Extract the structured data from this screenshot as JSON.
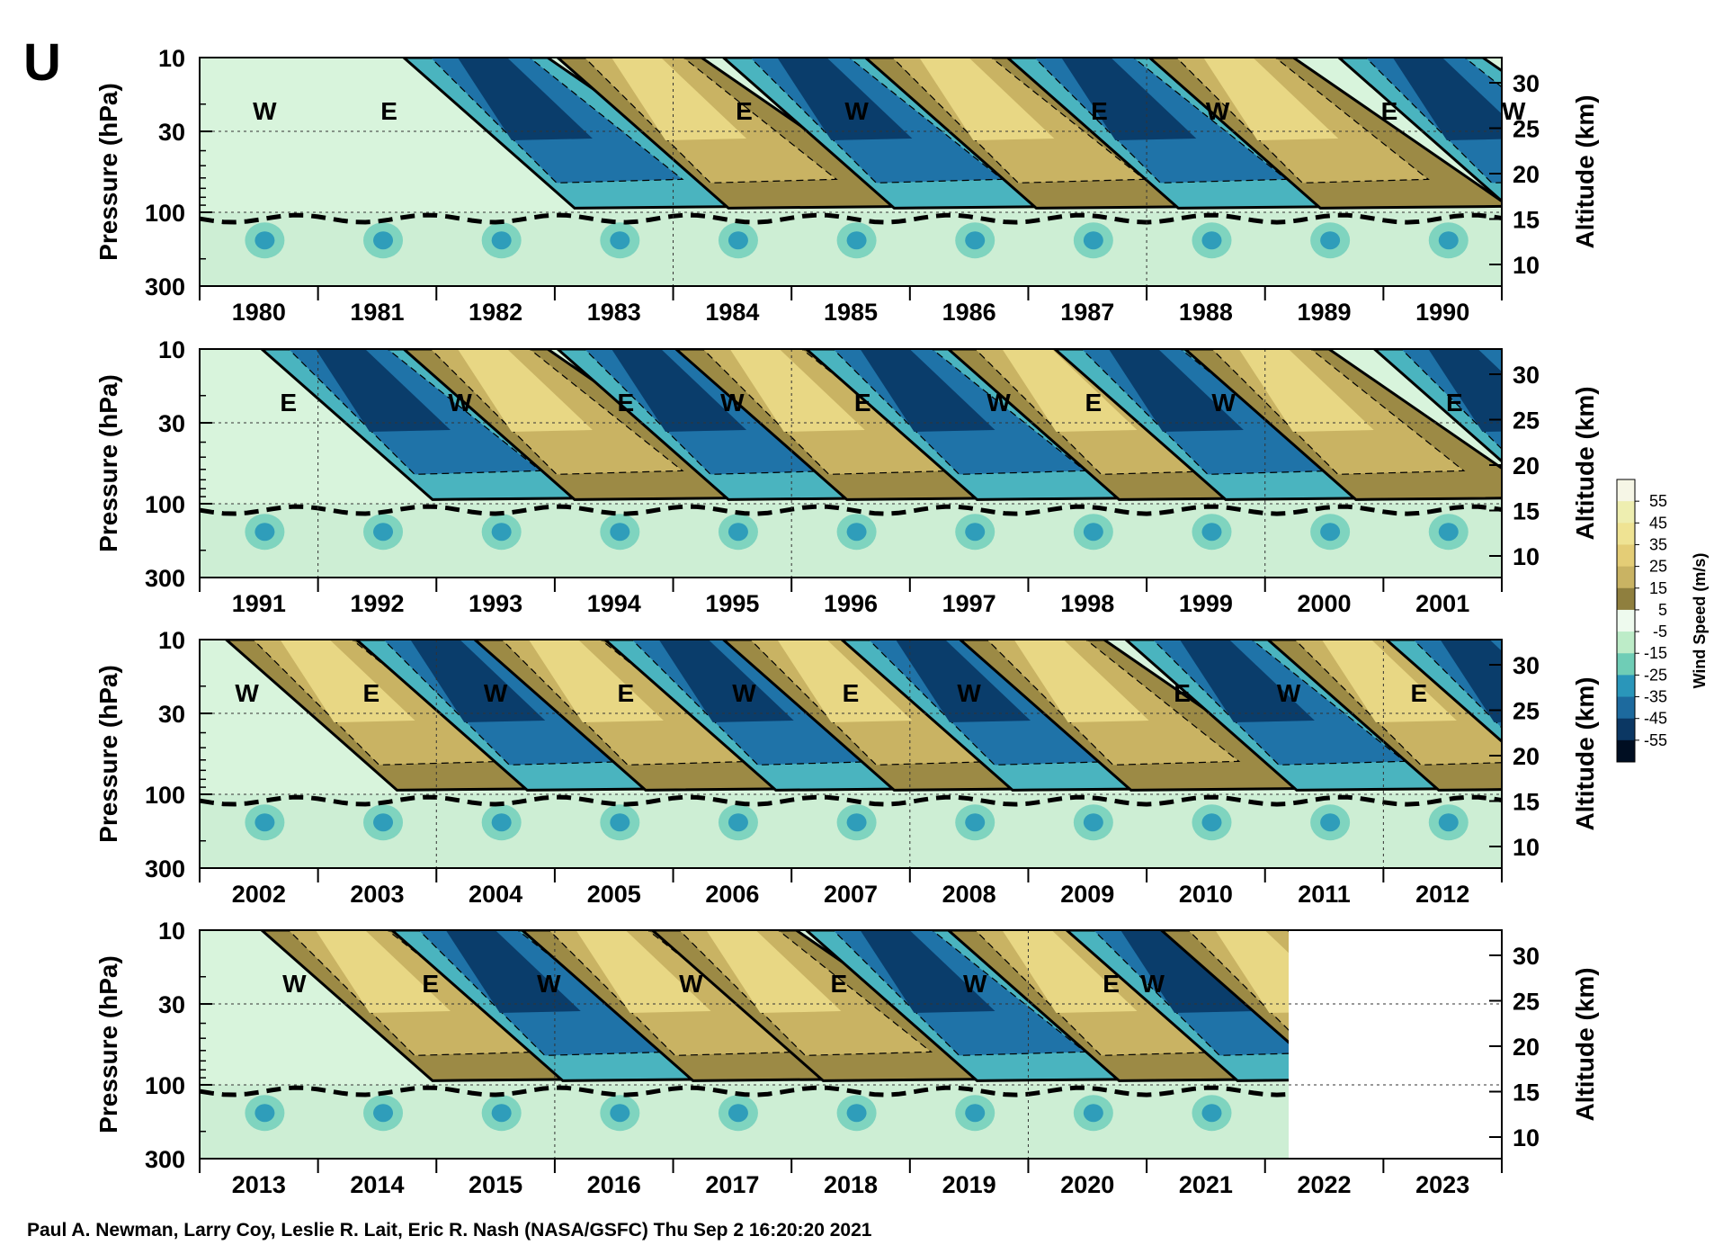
{
  "panel_letter": "U",
  "credit": "Paul A. Newman, Larry Coy, Leslie R. Lait, Eric R. Nash (NASA/GSFC) Thu Sep  2 16:20:20 2021",
  "colors": {
    "easterly_strong": "#0a3d6b",
    "easterly_mid": "#1f73a8",
    "easterly_weak": "#4ab4bf",
    "near_zero": "#b8ecca",
    "westerly_weak": "#9c8a45",
    "westerly_mid": "#c9b363",
    "westerly_strong": "#e8d784"
  },
  "colorbar": {
    "title": "Wind Speed (m/s)",
    "levels": [
      "55",
      "45",
      "35",
      "25",
      "15",
      "5",
      "-5",
      "-15",
      "-25",
      "-35",
      "-45",
      "-55"
    ],
    "colors": [
      "#f6f6e6",
      "#eeeeb0",
      "#efe393",
      "#e4cd76",
      "#c9b363",
      "#8f7f3e",
      "#eefaee",
      "#bdecc8",
      "#6fcdb6",
      "#2a96ba",
      "#1d6a9e",
      "#0b3763",
      "#000e22"
    ]
  },
  "chart_data": [
    {
      "type": "heatmap",
      "xlabels": [
        "1980",
        "1981",
        "1982",
        "1983",
        "1984",
        "1985",
        "1986",
        "1987",
        "1988",
        "1989",
        "1990"
      ],
      "xrange": [
        1979.5,
        1990.5
      ],
      "ylabel": "Pressure (hPa)",
      "yticks": [
        "10",
        "30",
        "100",
        "300"
      ],
      "y2label": "Altitude (km)",
      "y2ticks": [
        "30",
        "25",
        "20",
        "15",
        "10"
      ],
      "phase_labels": [
        {
          "text": "W",
          "year": 1980.05
        },
        {
          "text": "E",
          "year": 1981.1
        },
        {
          "text": "E",
          "year": 1984.1
        },
        {
          "text": "W",
          "year": 1985.05
        },
        {
          "text": "E",
          "year": 1987.1
        },
        {
          "text": "W",
          "year": 1988.1
        },
        {
          "text": "E",
          "year": 1989.55
        },
        {
          "text": "W",
          "year": 1990.6
        }
      ],
      "phases": [
        {
          "type": "E",
          "year": 1981.3
        },
        {
          "type": "W",
          "year": 1982.6
        },
        {
          "type": "E",
          "year": 1984.0
        },
        {
          "type": "W",
          "year": 1985.2
        },
        {
          "type": "E",
          "year": 1986.4
        },
        {
          "type": "W",
          "year": 1987.6
        },
        {
          "type": "E",
          "year": 1989.2
        },
        {
          "type": "W",
          "year": 1990.7
        }
      ]
    },
    {
      "type": "heatmap",
      "xlabels": [
        "1991",
        "1992",
        "1993",
        "1994",
        "1995",
        "1996",
        "1997",
        "1998",
        "1999",
        "2000",
        "2001"
      ],
      "xrange": [
        1990.5,
        2001.5
      ],
      "ylabel": "Pressure (hPa)",
      "yticks": [
        "10",
        "30",
        "100",
        "300"
      ],
      "y2label": "Altitude (km)",
      "y2ticks": [
        "30",
        "25",
        "20",
        "15",
        "10"
      ],
      "phase_labels": [
        {
          "text": "E",
          "year": 1991.25
        },
        {
          "text": "W",
          "year": 1992.7
        },
        {
          "text": "E",
          "year": 1994.1
        },
        {
          "text": "W",
          "year": 1995.0
        },
        {
          "text": "E",
          "year": 1996.1
        },
        {
          "text": "W",
          "year": 1997.25
        },
        {
          "text": "E",
          "year": 1998.05
        },
        {
          "text": "W",
          "year": 1999.15
        },
        {
          "text": "E",
          "year": 2001.1
        }
      ],
      "phases": [
        {
          "type": "E",
          "year": 1991.1
        },
        {
          "type": "W",
          "year": 1992.3
        },
        {
          "type": "E",
          "year": 1993.6
        },
        {
          "type": "W",
          "year": 1994.6
        },
        {
          "type": "E",
          "year": 1995.7
        },
        {
          "type": "W",
          "year": 1996.9
        },
        {
          "type": "E",
          "year": 1997.8
        },
        {
          "type": "W",
          "year": 1998.9
        },
        {
          "type": "E",
          "year": 2000.5
        }
      ]
    },
    {
      "type": "heatmap",
      "xlabels": [
        "2002",
        "2003",
        "2004",
        "2005",
        "2006",
        "2007",
        "2008",
        "2009",
        "2010",
        "2011",
        "2012"
      ],
      "xrange": [
        2001.5,
        2012.5
      ],
      "ylabel": "Pressure (hPa)",
      "yticks": [
        "10",
        "30",
        "100",
        "300"
      ],
      "y2label": "Altitude (km)",
      "y2ticks": [
        "30",
        "25",
        "20",
        "15",
        "10"
      ],
      "phase_labels": [
        {
          "text": "W",
          "year": 2001.9
        },
        {
          "text": "E",
          "year": 2002.95
        },
        {
          "text": "W",
          "year": 2004.0
        },
        {
          "text": "E",
          "year": 2005.1
        },
        {
          "text": "W",
          "year": 2006.1
        },
        {
          "text": "E",
          "year": 2007.0
        },
        {
          "text": "W",
          "year": 2008.0
        },
        {
          "text": "E",
          "year": 2009.8
        },
        {
          "text": "W",
          "year": 2010.7
        },
        {
          "text": "E",
          "year": 2011.8
        }
      ],
      "phases": [
        {
          "type": "W",
          "year": 2001.8
        },
        {
          "type": "E",
          "year": 2002.9
        },
        {
          "type": "W",
          "year": 2003.9
        },
        {
          "type": "E",
          "year": 2005.0
        },
        {
          "type": "W",
          "year": 2006.0
        },
        {
          "type": "E",
          "year": 2007.0
        },
        {
          "type": "W",
          "year": 2008.0
        },
        {
          "type": "E",
          "year": 2009.4
        },
        {
          "type": "W",
          "year": 2010.6
        },
        {
          "type": "E",
          "year": 2011.6
        }
      ]
    },
    {
      "type": "heatmap",
      "xlabels": [
        "2013",
        "2014",
        "2015",
        "2016",
        "2017",
        "2018",
        "2019",
        "2020",
        "2021",
        "2022",
        "2023"
      ],
      "xrange": [
        2012.5,
        2023.5
      ],
      "ylabel": "Pressure (hPa)",
      "yticks": [
        "10",
        "30",
        "100",
        "300"
      ],
      "y2label": "Altitude (km)",
      "y2ticks": [
        "30",
        "25",
        "20",
        "15",
        "10"
      ],
      "data_end_year": 2021.7,
      "phase_labels": [
        {
          "text": "W",
          "year": 2013.3
        },
        {
          "text": "E",
          "year": 2014.45
        },
        {
          "text": "W",
          "year": 2015.45
        },
        {
          "text": "W",
          "year": 2016.65
        },
        {
          "text": "E",
          "year": 2017.9
        },
        {
          "text": "W",
          "year": 2019.05
        },
        {
          "text": "E",
          "year": 2020.2
        },
        {
          "text": "W",
          "year": 2020.55
        }
      ],
      "phases": [
        {
          "type": "W",
          "year": 2013.1
        },
        {
          "type": "E",
          "year": 2014.2
        },
        {
          "type": "W",
          "year": 2015.3
        },
        {
          "type": "W",
          "year": 2016.4
        },
        {
          "type": "E",
          "year": 2017.7
        },
        {
          "type": "W",
          "year": 2018.9
        },
        {
          "type": "E",
          "year": 2019.9
        },
        {
          "type": "W",
          "year": 2020.7
        }
      ]
    }
  ]
}
